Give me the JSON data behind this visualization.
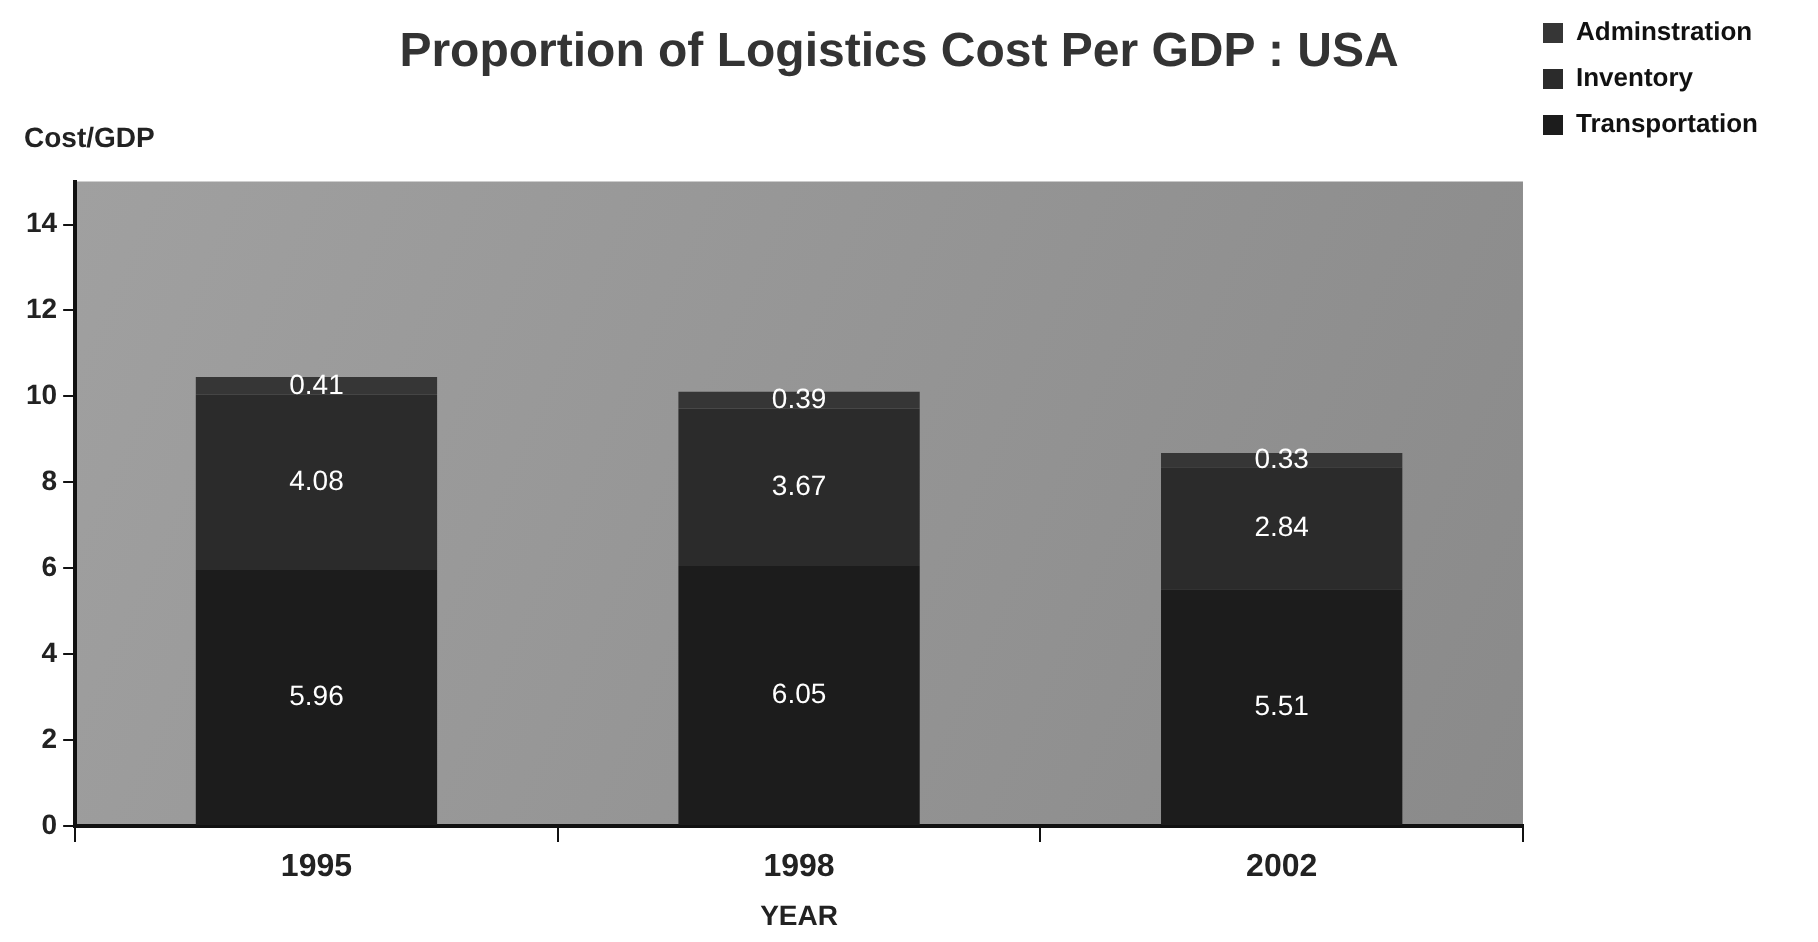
{
  "chart_data": {
    "type": "bar",
    "title": "Proportion of Logistics Cost Per GDP : USA",
    "xlabel": "YEAR",
    "ylabel": "Cost/GDP",
    "categories": [
      "1995",
      "1998",
      "2002"
    ],
    "series": [
      {
        "name": "Transportation",
        "color": "#1c1c1c",
        "values": [
          5.96,
          6.05,
          5.51
        ]
      },
      {
        "name": "Inventory",
        "color": "#2b2b2b",
        "values": [
          4.08,
          3.67,
          2.84
        ]
      },
      {
        "name": "Adminstration",
        "color": "#363636",
        "values": [
          0.41,
          0.39,
          0.33
        ]
      }
    ],
    "stacked": true,
    "ylim": [
      0,
      15
    ],
    "yticks": [
      0,
      2,
      4,
      6,
      8,
      10,
      12,
      14
    ],
    "grid": false,
    "legend": "top right",
    "data_labels": true
  }
}
